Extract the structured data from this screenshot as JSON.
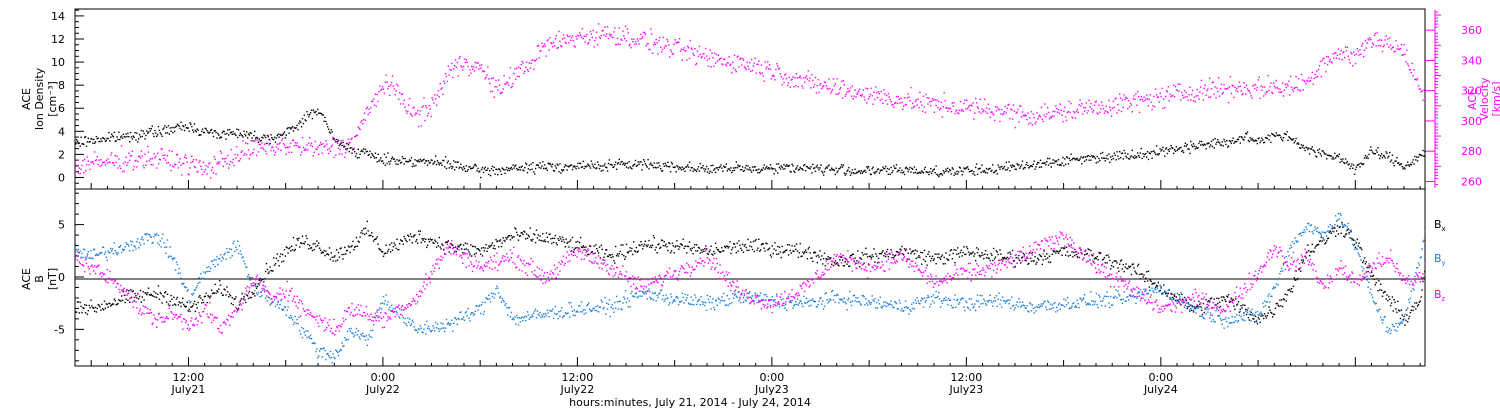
{
  "colors": {
    "density": "#000000",
    "velocity": "#ff00ff",
    "bx": "#000000",
    "by": "#1a7fd6",
    "bz": "#ff00ff",
    "frame": "#000000"
  },
  "chart_data": [
    {
      "type": "scatter",
      "panel": "top",
      "left_axis": {
        "label_lines": [
          "ACE",
          "Ion Density",
          "[cm⁻³]"
        ],
        "ylim": [
          -1,
          14.6
        ],
        "ticks": [
          "0",
          "2",
          "4",
          "6",
          "8",
          "10",
          "12",
          "14"
        ]
      },
      "right_axis": {
        "label_lines": [
          "ACE",
          "Velocity",
          "[km/s]"
        ],
        "ylim": [
          255,
          374
        ],
        "ticks": [
          "260",
          "280",
          "300",
          "320",
          "340",
          "360"
        ]
      },
      "x_units": "hours since July 21, 2014 00:00",
      "xlim": [
        5,
        88.3
      ],
      "series": [
        {
          "axis": "left",
          "color": "#000000",
          "x": [
            5,
            6,
            8,
            10,
            12,
            13,
            14,
            15,
            16,
            17,
            18,
            19,
            20,
            21,
            22,
            24,
            26,
            28,
            30,
            32,
            34,
            36,
            38,
            40,
            42,
            44,
            46,
            48,
            50,
            52,
            54,
            56,
            58,
            60,
            62,
            64,
            66,
            68,
            70,
            72,
            74,
            75,
            76,
            77,
            78,
            79,
            80,
            81,
            82,
            83,
            84,
            85,
            86,
            87,
            88,
            88.3
          ],
          "y": [
            3.0,
            3.3,
            3.6,
            4.0,
            4.5,
            4.0,
            3.8,
            4.0,
            3.6,
            3.5,
            3.8,
            5.0,
            6.0,
            3.2,
            2.5,
            1.6,
            1.5,
            1.2,
            0.6,
            0.8,
            1.0,
            1.0,
            1.1,
            1.2,
            1.0,
            0.8,
            0.8,
            0.9,
            0.9,
            0.7,
            0.6,
            0.7,
            0.6,
            0.6,
            0.8,
            1.2,
            1.5,
            1.8,
            2.0,
            2.3,
            2.8,
            3.0,
            3.0,
            3.5,
            3.2,
            3.8,
            3.5,
            2.5,
            2.0,
            1.8,
            0.8,
            2.3,
            1.8,
            1.0,
            2.0,
            2.2
          ]
        },
        {
          "axis": "right",
          "color": "#ff00ff",
          "x": [
            5,
            6,
            8,
            10,
            12,
            13,
            14,
            15,
            16,
            17,
            18,
            19,
            20,
            21,
            22,
            23,
            24,
            25,
            26,
            27,
            28,
            29,
            30,
            31,
            32,
            33,
            34,
            36,
            38,
            40,
            42,
            44,
            46,
            48,
            50,
            52,
            54,
            56,
            58,
            60,
            62,
            64,
            66,
            68,
            70,
            72,
            74,
            76,
            78,
            80,
            81,
            82,
            83,
            84,
            85,
            86,
            87,
            88,
            88.3
          ],
          "y": [
            270,
            272,
            275,
            276,
            272,
            268,
            274,
            278,
            282,
            283,
            284,
            283,
            282,
            283,
            285,
            305,
            325,
            318,
            303,
            310,
            332,
            340,
            335,
            320,
            330,
            338,
            350,
            356,
            358,
            354,
            348,
            342,
            339,
            334,
            326,
            322,
            318,
            314,
            311,
            309,
            307,
            304,
            306,
            310,
            312,
            316,
            320,
            322,
            322,
            323,
            326,
            340,
            345,
            343,
            355,
            352,
            345,
            320,
            312
          ]
        }
      ]
    },
    {
      "type": "scatter",
      "panel": "bottom",
      "left_axis": {
        "label_lines": [
          "ACE",
          "B",
          "[nT]"
        ],
        "ylim": [
          -8.5,
          8.4
        ],
        "ticks": [
          "-5",
          "0",
          "5"
        ]
      },
      "x_units": "hours since July 21, 2014 00:00",
      "xlim": [
        5,
        88.3
      ],
      "legend_position": "right",
      "series": [
        {
          "name": "Bx",
          "color": "#000000",
          "x": [
            5,
            6,
            8,
            10,
            11,
            12,
            13,
            14,
            15,
            16,
            17,
            18,
            19,
            20,
            21,
            22,
            23,
            24,
            26,
            28,
            30,
            32,
            34,
            36,
            38,
            40,
            42,
            44,
            46,
            48,
            50,
            52,
            54,
            56,
            58,
            60,
            62,
            64,
            66,
            68,
            70,
            72,
            74,
            76,
            78,
            79,
            80,
            81,
            82,
            83,
            84,
            85,
            86,
            87,
            88,
            88.3
          ],
          "y": [
            -2.5,
            -3.0,
            -2.0,
            -1.5,
            -2.0,
            -3.0,
            -2.0,
            -1.0,
            -2.5,
            -1.0,
            1.0,
            2.5,
            3.5,
            3.0,
            2.0,
            3.0,
            4.5,
            2.5,
            4.0,
            3.0,
            2.5,
            4.0,
            3.8,
            3.0,
            2.0,
            3.2,
            3.0,
            2.5,
            3.0,
            2.8,
            2.5,
            1.5,
            2.0,
            2.5,
            1.8,
            2.4,
            2.0,
            1.8,
            2.5,
            2.0,
            1.0,
            -1.0,
            -3.0,
            -2.0,
            -4.0,
            -3.0,
            -1.0,
            2.5,
            3.5,
            5.0,
            3.5,
            0.0,
            -2.0,
            -4.0,
            -2.0,
            1.0
          ]
        },
        {
          "name": "By",
          "color": "#1a7fd6",
          "x": [
            5,
            6,
            8,
            10,
            11,
            12,
            13,
            14,
            15,
            16,
            17,
            18,
            19,
            20,
            21,
            22,
            23,
            24,
            26,
            28,
            30,
            31,
            32,
            34,
            36,
            38,
            40,
            42,
            44,
            46,
            48,
            50,
            52,
            54,
            56,
            58,
            60,
            62,
            64,
            66,
            68,
            70,
            72,
            74,
            76,
            78,
            79,
            80,
            81,
            82,
            83,
            84,
            85,
            86,
            87,
            88,
            88.3
          ],
          "y": [
            2.5,
            2.0,
            3.0,
            4.0,
            2.0,
            -2.0,
            0.5,
            2.0,
            3.0,
            -1.0,
            -2.0,
            -3.0,
            -5.0,
            -7.0,
            -7.5,
            -5.0,
            -6.0,
            -2.0,
            -5.0,
            -4.5,
            -3.0,
            -1.0,
            -4.0,
            -3.5,
            -3.0,
            -2.8,
            -1.5,
            -2.0,
            -2.5,
            -1.8,
            -2.2,
            -2.5,
            -2.0,
            -2.3,
            -2.8,
            -2.0,
            -2.5,
            -2.2,
            -2.8,
            -2.5,
            -2.2,
            -2.0,
            -1.0,
            -3.0,
            -4.0,
            -3.5,
            -1.0,
            3.0,
            5.0,
            4.0,
            6.0,
            3.0,
            -2.0,
            -5.0,
            -4.0,
            2.0,
            4.5
          ]
        },
        {
          "name": "Bz",
          "color": "#ff00ff",
          "x": [
            5,
            6,
            8,
            9,
            10,
            11,
            12,
            13,
            14,
            15,
            16,
            17,
            18,
            19,
            20,
            21,
            22,
            24,
            26,
            28,
            30,
            32,
            34,
            36,
            38,
            40,
            42,
            44,
            46,
            48,
            50,
            52,
            54,
            56,
            58,
            60,
            62,
            64,
            66,
            68,
            70,
            72,
            74,
            76,
            78,
            79,
            80,
            81,
            82,
            83,
            84,
            85,
            86,
            87,
            88,
            88.3
          ],
          "y": [
            2.0,
            1.0,
            -1.0,
            -3.0,
            -4.0,
            -3.5,
            -4.5,
            -3.0,
            -5.0,
            -3.0,
            0.0,
            -2.0,
            -1.0,
            -3.0,
            -4.0,
            -5.0,
            -3.0,
            -4.0,
            -2.0,
            3.0,
            1.0,
            2.0,
            0.0,
            2.5,
            1.0,
            -1.0,
            0.5,
            2.0,
            -1.5,
            -2.5,
            -1.0,
            2.0,
            1.0,
            2.0,
            -0.5,
            0.5,
            1.0,
            2.5,
            4.0,
            1.0,
            -1.0,
            -3.0,
            -2.0,
            -3.0,
            0.5,
            3.0,
            1.0,
            2.0,
            -1.0,
            1.0,
            -0.5,
            1.0,
            2.0,
            -0.5,
            0.0,
            1.0
          ]
        }
      ]
    }
  ],
  "x_axis": {
    "ticks": [
      {
        "hour": 12,
        "time": "12:00",
        "date": "July21"
      },
      {
        "hour": 24,
        "time": "0:00",
        "date": "July22"
      },
      {
        "hour": 36,
        "time": "12:00",
        "date": "July22"
      },
      {
        "hour": 48,
        "time": "0:00",
        "date": "July23"
      },
      {
        "hour": 60,
        "time": "12:00",
        "date": "July23"
      },
      {
        "hour": 72,
        "time": "0:00",
        "date": "July24"
      }
    ],
    "title": "hours:minutes, July 21, 2014 - July 24, 2014"
  },
  "legend": {
    "bx": {
      "base": "B",
      "sub": "x"
    },
    "by": {
      "base": "B",
      "sub": "y"
    },
    "bz": {
      "base": "B",
      "sub": "z"
    }
  }
}
